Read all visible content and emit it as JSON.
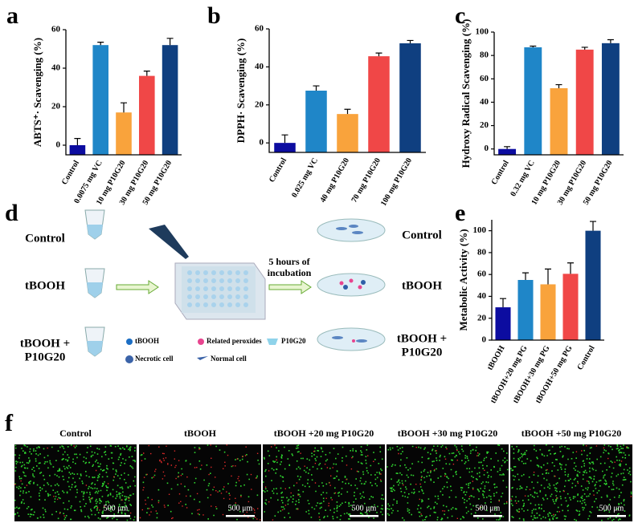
{
  "panel_labels": [
    "a",
    "b",
    "c",
    "d",
    "e",
    "f"
  ],
  "chart_data": [
    {
      "type": "bar",
      "y_label": "ABTS⁺· Scavenging (%)",
      "categories": [
        "Control",
        "0.0075 mg VC",
        "10 mg P10G20",
        "30 mg P10G20",
        "50 mg P10G20"
      ],
      "values": [
        0,
        52,
        17,
        36,
        52
      ],
      "errors": [
        3.5,
        1.5,
        5,
        2.5,
        3.5
      ],
      "colors": [
        "#0c0ca0",
        "#1f86c8",
        "#f9a33c",
        "#f04747",
        "#0f3f80"
      ],
      "ylim": [
        -5,
        60
      ],
      "yticks": [
        0,
        20,
        40,
        60
      ]
    },
    {
      "type": "bar",
      "y_label": "DPPH· Scavenging (%)",
      "categories": [
        "Control",
        "0.025 mg VC",
        "40 mg P10G20",
        "70 mg P10G20",
        "100 mg P10G20"
      ],
      "values": [
        0,
        27.5,
        15.2,
        45.6,
        52.4
      ],
      "errors": [
        4.2,
        2.5,
        2.5,
        1.7,
        1.5
      ],
      "colors": [
        "#0c0ca0",
        "#1f86c8",
        "#f9a33c",
        "#f04747",
        "#0f3f80"
      ],
      "ylim": [
        -5,
        60
      ],
      "yticks": [
        0,
        20,
        40,
        60
      ]
    },
    {
      "type": "bar",
      "y_label": "Hydroxy Radical Scavenging (%)",
      "categories": [
        "Control",
        "0.32 mg VC",
        "10 mg P10G20",
        "30 mg P10G20",
        "50 mg P10G20"
      ],
      "values": [
        0,
        87,
        52,
        85,
        90.5
      ],
      "errors": [
        2,
        1,
        3,
        2,
        3
      ],
      "colors": [
        "#0c0ca0",
        "#1f86c8",
        "#f9a33c",
        "#f04747",
        "#0f3f80"
      ],
      "ylim": [
        -5,
        100
      ],
      "yticks": [
        0,
        20,
        40,
        60,
        80,
        100
      ]
    },
    {
      "type": "bar",
      "y_label": "Metabolic Activity (%)",
      "categories": [
        "tBOOH",
        "tBOOH+20 mg PG",
        "tBOOH+30 mg PG",
        "tBOOH+50 mg PG",
        "Control"
      ],
      "values": [
        30,
        55,
        51,
        60.6,
        100
      ],
      "errors": [
        8,
        6.5,
        14,
        10,
        8.5
      ],
      "colors": [
        "#0c0ca0",
        "#1f86c8",
        "#f9a33c",
        "#f04747",
        "#0f3f80"
      ],
      "ylim": [
        0,
        110
      ],
      "yticks": [
        0,
        20,
        40,
        60,
        80,
        100
      ]
    }
  ],
  "diagram": {
    "left_labels": [
      "Control",
      "tBOOH",
      "tBOOH +\nP10G20"
    ],
    "right_labels": [
      "Control",
      "tBOOH",
      "tBOOH +\nP10G20"
    ],
    "step": "5 hours of\nincubation",
    "legend": [
      "tBOOH",
      "Related peroxides",
      "P10G20",
      "Necrotic cell",
      "Normal cell"
    ]
  },
  "micrographs": [
    {
      "title": "Control",
      "scale": "500 μm"
    },
    {
      "title": "tBOOH",
      "scale": "500 μm"
    },
    {
      "title": "tBOOH +20 mg P10G20",
      "scale": "500 μm"
    },
    {
      "title": "tBOOH +30 mg P10G20",
      "scale": "500 μm"
    },
    {
      "title": "tBOOH +50 mg P10G20",
      "scale": "500 μm"
    }
  ]
}
